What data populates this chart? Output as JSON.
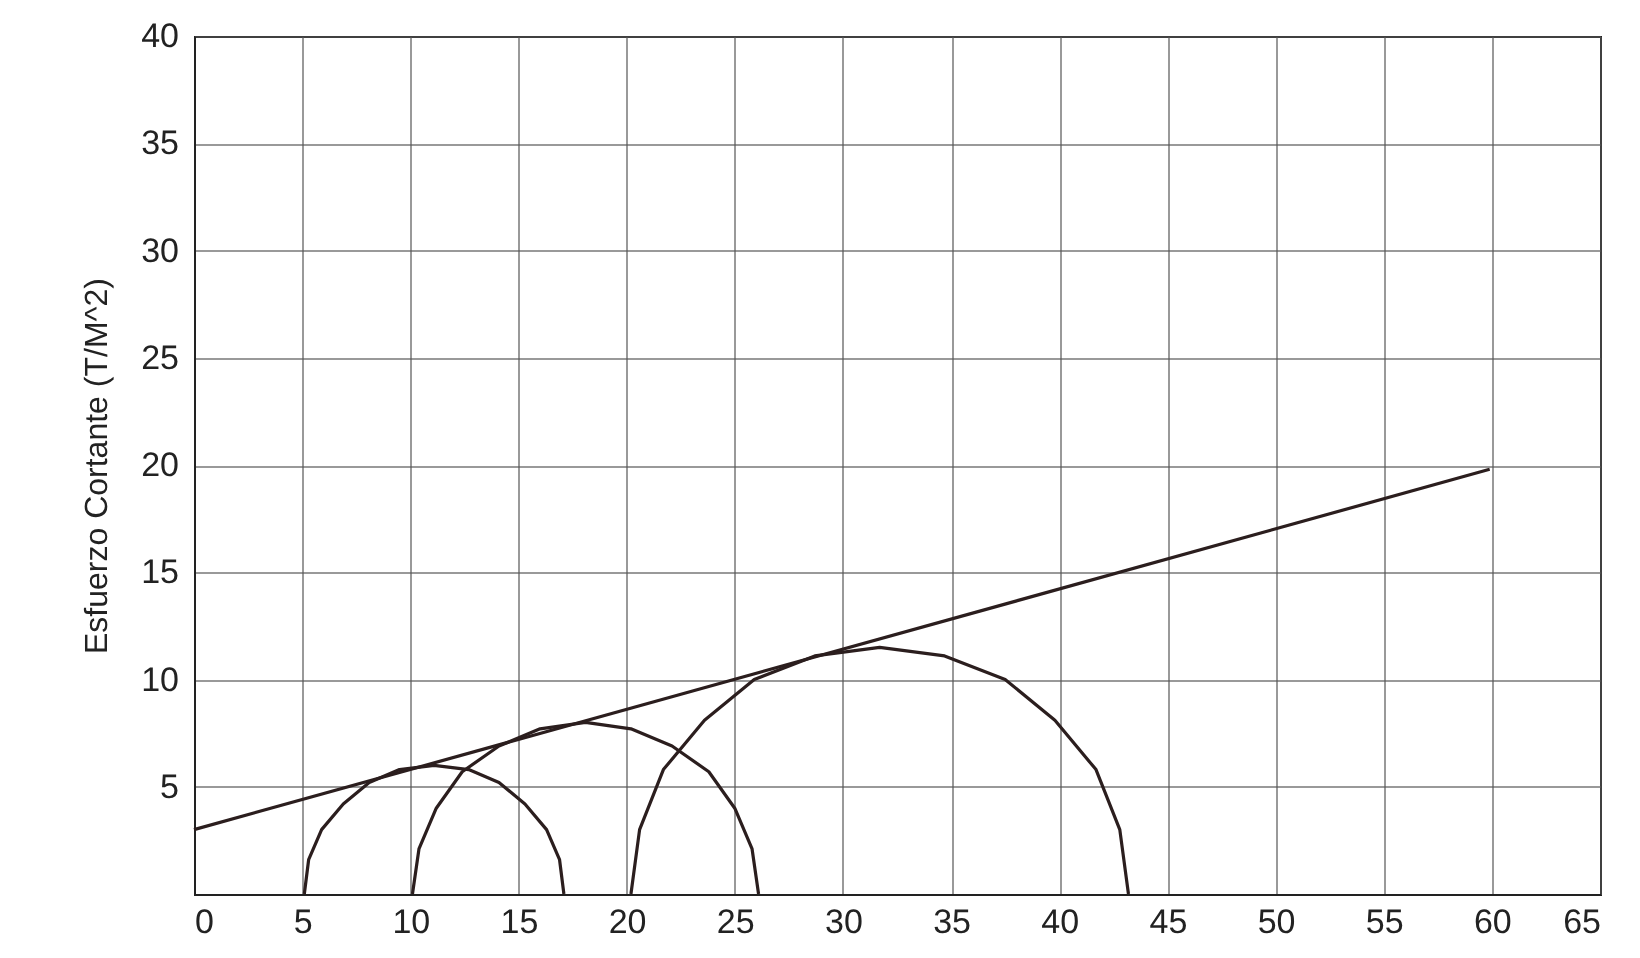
{
  "chart_data": {
    "type": "line",
    "ylabel": "Esfuerzo Cortante (T/M^2)",
    "xlim": [
      0,
      65
    ],
    "ylim": [
      0,
      40
    ],
    "xticks": [
      0,
      5,
      10,
      15,
      20,
      25,
      30,
      35,
      40,
      45,
      50,
      55,
      60,
      65
    ],
    "yticks": [
      5,
      10,
      15,
      20,
      25,
      30,
      35,
      40
    ],
    "grid": true,
    "line_style": "solid",
    "marker": "none",
    "series": [
      {
        "color": "#2b1e1e",
        "x": [
          0,
          59.9
        ],
        "values": [
          3,
          19.8
        ]
      },
      {
        "color": "#2b1e1e",
        "x": [
          5.1,
          5.3,
          5.9,
          6.9,
          8.1,
          9.5,
          11.1,
          12.7,
          14.1,
          15.3,
          16.3,
          16.9,
          17.1
        ],
        "values": [
          0,
          1.6,
          3,
          4.2,
          5.2,
          5.8,
          6,
          5.8,
          5.2,
          4.2,
          3,
          1.6,
          0
        ]
      },
      {
        "color": "#2b1e1e",
        "x": [
          10.1,
          10.4,
          11.2,
          12.4,
          14.1,
          16.0,
          18.1,
          20.2,
          22.1,
          23.8,
          25.0,
          25.8,
          26.1
        ],
        "values": [
          0,
          2.1,
          4,
          5.7,
          6.9,
          7.7,
          8,
          7.7,
          6.9,
          5.7,
          4,
          2.1,
          0
        ]
      },
      {
        "color": "#2b1e1e",
        "x": [
          20.2,
          20.6,
          21.7,
          23.6,
          25.9,
          28.7,
          31.7,
          34.7,
          37.5,
          39.8,
          41.7,
          42.8,
          43.2
        ],
        "values": [
          0,
          3.0,
          5.8,
          8.1,
          10.0,
          11.1,
          11.5,
          11.1,
          10.0,
          8.1,
          5.8,
          3.0,
          0
        ]
      }
    ]
  }
}
